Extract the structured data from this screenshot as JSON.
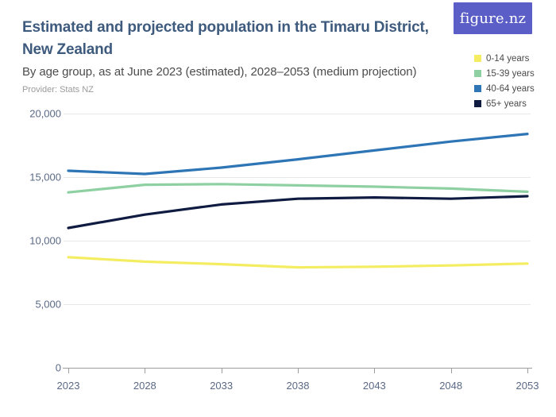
{
  "header": {
    "title_line1": "Estimated and projected population in the Timaru District,",
    "title_line2": "New Zealand",
    "subtitle": "By age group, as at June 2023 (estimated), 2028–2053 (medium projection)",
    "provider": "Provider: Stats NZ",
    "logo_text": "figure.nz",
    "logo_bg_color": "#5a5ec6"
  },
  "chart_data": {
    "type": "line",
    "title": "Estimated and projected population in the Timaru District, New Zealand",
    "subtitle": "By age group, as at June 2023 (estimated), 2028–2053 (medium projection)",
    "xlabel": "",
    "ylabel": "",
    "x": [
      2023,
      2028,
      2033,
      2038,
      2043,
      2048,
      2053
    ],
    "x_tick_labels": [
      "2023",
      "2028",
      "2033",
      "2038",
      "2043",
      "2048",
      "2053"
    ],
    "series": [
      {
        "name": "0-14 years",
        "color": "#f4ed62",
        "values": [
          8700,
          8350,
          8150,
          7900,
          7950,
          8050,
          8200
        ]
      },
      {
        "name": "15-39 years",
        "color": "#8fd0a3",
        "values": [
          13800,
          14400,
          14450,
          14350,
          14250,
          14100,
          13850
        ]
      },
      {
        "name": "40-64 years",
        "color": "#2e75b5",
        "values": [
          15500,
          15250,
          15750,
          16400,
          17100,
          17800,
          18400
        ]
      },
      {
        "name": "65+ years",
        "color": "#101b42",
        "values": [
          11000,
          12050,
          12850,
          13300,
          13400,
          13300,
          13500
        ]
      }
    ],
    "ylim": [
      0,
      20000
    ],
    "yticks": [
      0,
      5000,
      10000,
      15000,
      20000
    ],
    "ytick_labels": [
      "0",
      "5,000",
      "10,000",
      "15,000",
      "20,000"
    ],
    "grid": true,
    "legend_position": "top-right",
    "axis_label_color": "#5a6986",
    "gridline_color": "#e8e8e8",
    "axisline_color": "#9e9e9e"
  }
}
